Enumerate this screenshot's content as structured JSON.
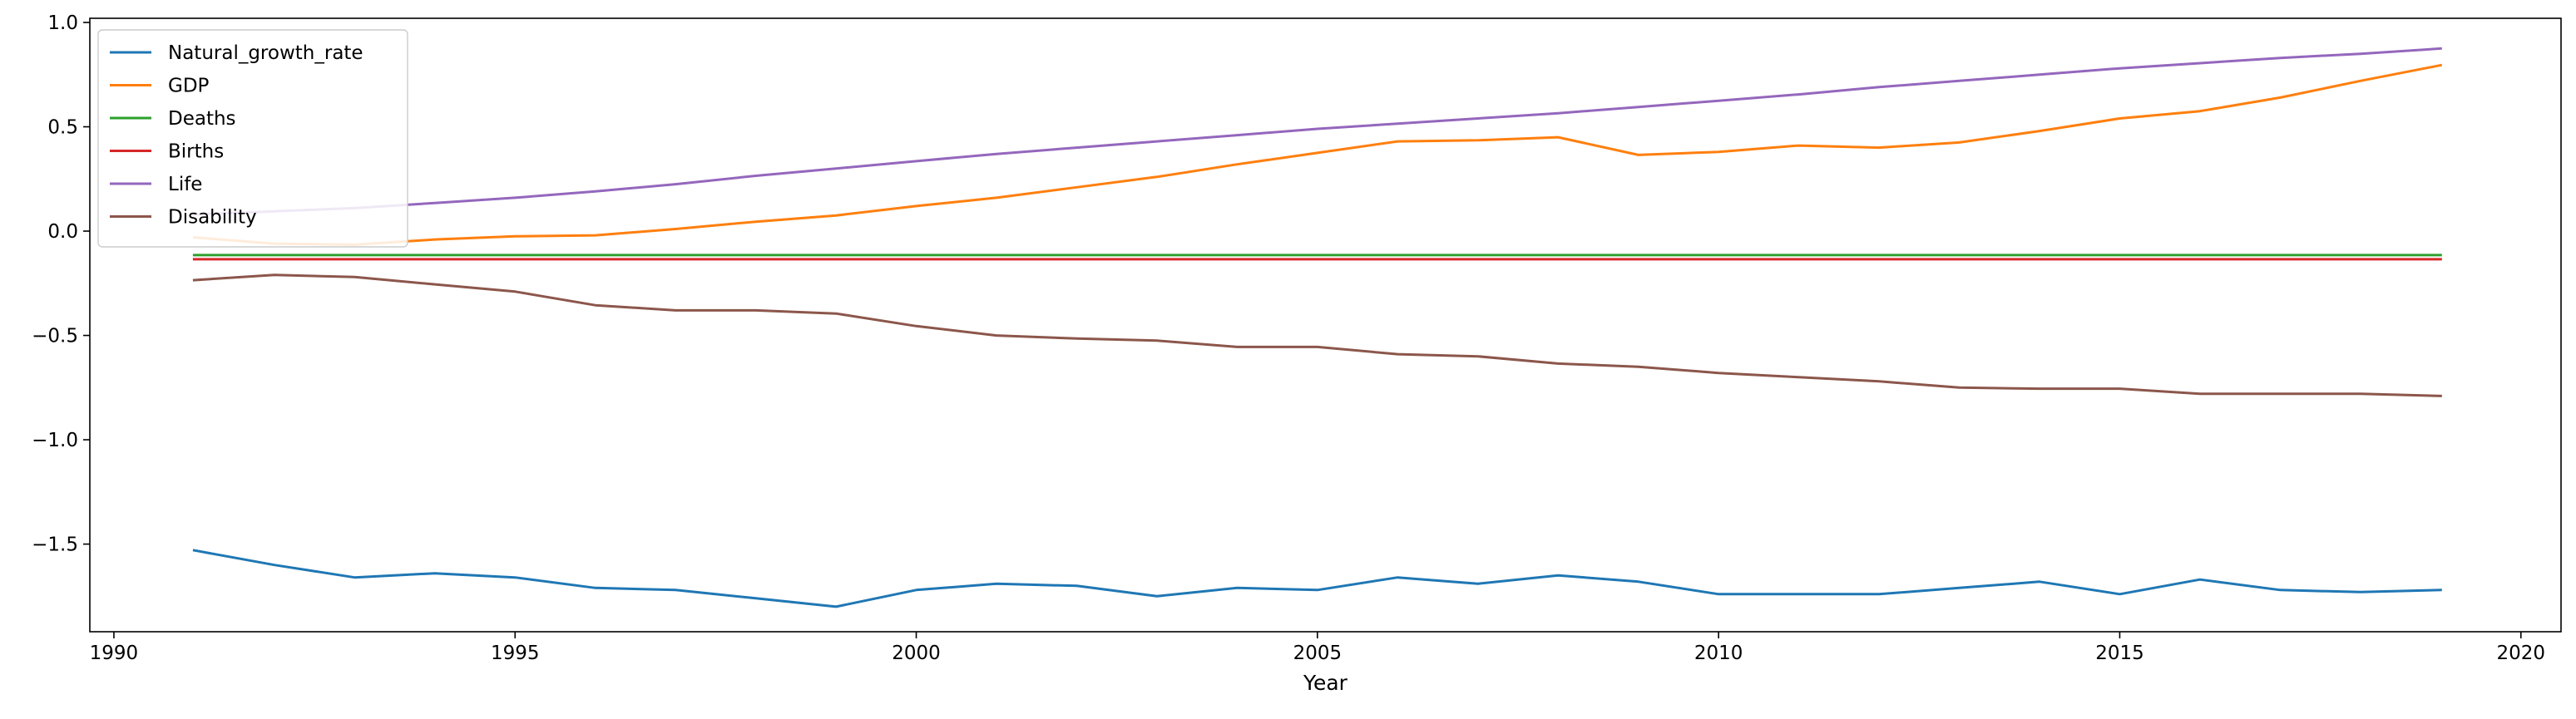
{
  "chart_data": {
    "type": "line",
    "title": "",
    "xlabel": "Year",
    "ylabel": "",
    "xlim": [
      1989.7,
      2020.5
    ],
    "ylim": [
      -1.92,
      1.02
    ],
    "xticks": [
      1990,
      1995,
      2000,
      2005,
      2010,
      2015,
      2020
    ],
    "yticks": [
      1.0,
      0.5,
      0.0,
      -0.5,
      -1.0,
      -1.5
    ],
    "ytick_labels": [
      "1.0",
      "0.5",
      "0.0",
      "−0.5",
      "−1.0",
      "−1.5"
    ],
    "grid": false,
    "legend_position": "top-left",
    "x": [
      1991,
      1992,
      1993,
      1994,
      1995,
      1996,
      1997,
      1998,
      1999,
      2000,
      2001,
      2002,
      2003,
      2004,
      2005,
      2006,
      2007,
      2008,
      2009,
      2010,
      2011,
      2012,
      2013,
      2014,
      2015,
      2016,
      2017,
      2018,
      2019
    ],
    "series": [
      {
        "name": "Natural_growth_rate",
        "color": "#1f77b4",
        "values": [
          -1.53,
          -1.6,
          -1.66,
          -1.64,
          -1.66,
          -1.71,
          -1.72,
          -1.76,
          -1.8,
          -1.72,
          -1.69,
          -1.7,
          -1.75,
          -1.71,
          -1.72,
          -1.66,
          -1.69,
          -1.65,
          -1.68,
          -1.74,
          -1.74,
          -1.74,
          -1.71,
          -1.68,
          -1.74,
          -1.67,
          -1.72,
          -1.73,
          -1.72
        ]
      },
      {
        "name": "GDP",
        "color": "#ff7f0e",
        "values": [
          -0.03,
          -0.06,
          -0.065,
          -0.04,
          -0.025,
          -0.02,
          0.01,
          0.045,
          0.075,
          0.12,
          0.16,
          0.21,
          0.26,
          0.32,
          0.375,
          0.43,
          0.435,
          0.45,
          0.365,
          0.38,
          0.41,
          0.4,
          0.425,
          0.48,
          0.54,
          0.575,
          0.64,
          0.72,
          0.795
        ]
      },
      {
        "name": "Deaths",
        "color": "#2ca02c",
        "values": [
          -0.115,
          -0.115,
          -0.115,
          -0.115,
          -0.115,
          -0.115,
          -0.115,
          -0.115,
          -0.115,
          -0.115,
          -0.115,
          -0.115,
          -0.115,
          -0.115,
          -0.115,
          -0.115,
          -0.115,
          -0.115,
          -0.115,
          -0.115,
          -0.115,
          -0.115,
          -0.115,
          -0.115,
          -0.115,
          -0.115,
          -0.115,
          -0.115,
          -0.115
        ]
      },
      {
        "name": "Births",
        "color": "#d62728",
        "values": [
          -0.135,
          -0.135,
          -0.135,
          -0.135,
          -0.135,
          -0.135,
          -0.135,
          -0.135,
          -0.135,
          -0.135,
          -0.135,
          -0.135,
          -0.135,
          -0.135,
          -0.135,
          -0.135,
          -0.135,
          -0.135,
          -0.135,
          -0.135,
          -0.135,
          -0.135,
          -0.135,
          -0.135,
          -0.135,
          -0.135,
          -0.135,
          -0.135,
          -0.135
        ]
      },
      {
        "name": "Life",
        "color": "#9467bd",
        "values": [
          0.08,
          0.095,
          0.11,
          0.135,
          0.16,
          0.19,
          0.225,
          0.265,
          0.3,
          0.335,
          0.37,
          0.4,
          0.43,
          0.46,
          0.49,
          0.515,
          0.54,
          0.565,
          0.595,
          0.625,
          0.655,
          0.69,
          0.72,
          0.75,
          0.78,
          0.805,
          0.83,
          0.85,
          0.875
        ]
      },
      {
        "name": "Disability",
        "color": "#8c564b",
        "values": [
          -0.235,
          -0.21,
          -0.22,
          -0.255,
          -0.29,
          -0.355,
          -0.38,
          -0.38,
          -0.395,
          -0.455,
          -0.5,
          -0.515,
          -0.525,
          -0.555,
          -0.555,
          -0.59,
          -0.6,
          -0.635,
          -0.65,
          -0.68,
          -0.7,
          -0.72,
          -0.75,
          -0.755,
          -0.755,
          -0.78,
          -0.78,
          -0.78,
          -0.79
        ]
      }
    ]
  }
}
